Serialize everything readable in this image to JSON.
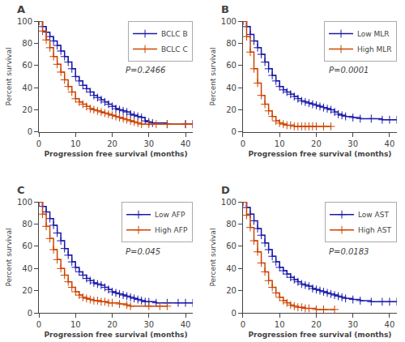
{
  "chart_data": [
    {
      "type": "step",
      "title": "A",
      "xlabel": "Progression free survival (months)",
      "ylabel": "Percent survival",
      "annotations": [
        "P=0.2466"
      ],
      "series": [
        {
          "name": "BCLC B",
          "color": "#1a1aaa",
          "marker": "+",
          "x": [
            0,
            1,
            2,
            3,
            4,
            5,
            6,
            7,
            8,
            9,
            10,
            11,
            12,
            13,
            14,
            15,
            16,
            17,
            18,
            19,
            20,
            21,
            22,
            23,
            24,
            25,
            26,
            27,
            28,
            29,
            30,
            31,
            35,
            40,
            42
          ],
          "values": [
            100,
            95,
            90,
            86,
            82,
            78,
            73,
            68,
            63,
            57,
            50,
            46,
            42,
            39,
            36,
            33,
            31,
            29,
            27,
            25,
            23,
            21,
            20,
            19,
            18,
            16,
            15,
            14,
            13,
            10,
            9,
            8,
            7,
            7,
            7
          ]
        },
        {
          "name": "BCLC C",
          "color": "#cc4400",
          "marker": "+",
          "x": [
            0,
            1,
            2,
            3,
            4,
            5,
            6,
            7,
            8,
            9,
            10,
            11,
            12,
            13,
            14,
            15,
            16,
            17,
            18,
            19,
            20,
            21,
            22,
            23,
            24,
            25,
            26,
            27,
            28,
            30,
            32,
            35,
            40,
            42
          ],
          "values": [
            100,
            91,
            83,
            76,
            68,
            61,
            54,
            47,
            41,
            36,
            30,
            27,
            25,
            23,
            21,
            20,
            19,
            18,
            17,
            16,
            15,
            14,
            13,
            12,
            11,
            10,
            9,
            8,
            7,
            7,
            7,
            7,
            7,
            7
          ]
        }
      ],
      "xlim": [
        0,
        42
      ],
      "ylim": [
        0,
        100
      ],
      "xticks": [
        0,
        10,
        20,
        30,
        40
      ],
      "yticks": [
        0,
        20,
        40,
        60,
        80,
        100
      ],
      "legend": "upper right",
      "grid": false
    },
    {
      "type": "step",
      "title": "B",
      "xlabel": "Progression free survival (months)",
      "ylabel": "Percent survival",
      "annotations": [
        "P=0.0001"
      ],
      "series": [
        {
          "name": "Low MLR",
          "color": "#1a1aaa",
          "marker": "+",
          "x": [
            0,
            1,
            2,
            3,
            4,
            5,
            6,
            7,
            8,
            9,
            10,
            11,
            12,
            13,
            14,
            15,
            16,
            17,
            18,
            19,
            20,
            21,
            22,
            23,
            24,
            25,
            26,
            27,
            28,
            30,
            32,
            35,
            38,
            40,
            42
          ],
          "values": [
            100,
            95,
            88,
            82,
            76,
            70,
            63,
            57,
            51,
            46,
            41,
            38,
            36,
            34,
            32,
            30,
            28,
            27,
            26,
            25,
            24,
            23,
            22,
            21,
            20,
            18,
            16,
            15,
            14,
            13,
            12,
            12,
            11,
            11,
            11
          ]
        },
        {
          "name": "High MLR",
          "color": "#cc4400",
          "marker": "+",
          "x": [
            0,
            1,
            2,
            3,
            4,
            5,
            6,
            7,
            8,
            9,
            10,
            11,
            12,
            13,
            14,
            15,
            16,
            17,
            18,
            19,
            20,
            22,
            24
          ],
          "values": [
            100,
            86,
            72,
            57,
            44,
            33,
            25,
            19,
            14,
            10,
            8,
            7,
            6,
            6,
            5,
            5,
            5,
            5,
            5,
            5,
            5,
            5,
            5
          ]
        }
      ],
      "xlim": [
        0,
        42
      ],
      "ylim": [
        0,
        100
      ],
      "xticks": [
        0,
        10,
        20,
        30,
        40
      ],
      "yticks": [
        0,
        20,
        40,
        60,
        80,
        100
      ],
      "legend": "upper right",
      "grid": false
    },
    {
      "type": "step",
      "title": "C",
      "xlabel": "Progression free survival (months)",
      "ylabel": "Percent survival",
      "annotations": [
        "P=0.045"
      ],
      "series": [
        {
          "name": "Low AFP",
          "color": "#1a1aaa",
          "marker": "+",
          "x": [
            0,
            1,
            2,
            3,
            4,
            5,
            6,
            7,
            8,
            9,
            10,
            11,
            12,
            13,
            14,
            15,
            16,
            17,
            18,
            19,
            20,
            21,
            22,
            23,
            24,
            25,
            26,
            27,
            28,
            29,
            30,
            32,
            35,
            38,
            40,
            42
          ],
          "values": [
            100,
            96,
            91,
            85,
            79,
            72,
            65,
            58,
            52,
            46,
            41,
            37,
            34,
            31,
            29,
            27,
            26,
            25,
            23,
            21,
            19,
            18,
            17,
            16,
            15,
            14,
            13,
            12,
            11,
            10,
            10,
            9,
            9,
            9,
            9,
            9
          ]
        },
        {
          "name": "High AFP",
          "color": "#cc4400",
          "marker": "+",
          "x": [
            0,
            1,
            2,
            3,
            4,
            5,
            6,
            7,
            8,
            9,
            10,
            11,
            12,
            13,
            14,
            15,
            16,
            17,
            18,
            19,
            20,
            22,
            24,
            25,
            30,
            33,
            35
          ],
          "values": [
            100,
            89,
            78,
            67,
            57,
            48,
            40,
            34,
            28,
            23,
            19,
            16,
            14,
            13,
            12,
            11,
            11,
            10,
            10,
            9,
            9,
            8,
            7,
            6,
            6,
            6,
            6
          ]
        }
      ],
      "xlim": [
        0,
        42
      ],
      "ylim": [
        0,
        100
      ],
      "xticks": [
        0,
        10,
        20,
        30,
        40
      ],
      "yticks": [
        0,
        20,
        40,
        60,
        80,
        100
      ],
      "legend": "upper right",
      "grid": false
    },
    {
      "type": "step",
      "title": "D",
      "xlabel": "Progression free survival (months)",
      "ylabel": "Percent survival",
      "annotations": [
        "P=0.0183"
      ],
      "series": [
        {
          "name": "Low AST",
          "color": "#1a1aaa",
          "marker": "+",
          "x": [
            0,
            1,
            2,
            3,
            4,
            5,
            6,
            7,
            8,
            9,
            10,
            11,
            12,
            13,
            14,
            15,
            16,
            17,
            18,
            19,
            20,
            21,
            22,
            23,
            24,
            25,
            26,
            27,
            28,
            30,
            32,
            35,
            38,
            40,
            42
          ],
          "values": [
            100,
            95,
            89,
            83,
            76,
            70,
            63,
            57,
            51,
            46,
            41,
            38,
            35,
            32,
            30,
            28,
            26,
            25,
            24,
            22,
            21,
            20,
            19,
            18,
            17,
            16,
            15,
            14,
            13,
            12,
            11,
            10,
            10,
            10,
            10
          ]
        },
        {
          "name": "High AST",
          "color": "#cc4400",
          "marker": "+",
          "x": [
            0,
            1,
            2,
            3,
            4,
            5,
            6,
            7,
            8,
            9,
            10,
            11,
            12,
            13,
            14,
            15,
            16,
            17,
            18,
            20,
            22,
            25
          ],
          "values": [
            100,
            88,
            77,
            65,
            55,
            45,
            37,
            29,
            23,
            18,
            14,
            11,
            9,
            7,
            6,
            5,
            5,
            4,
            4,
            3,
            3,
            3
          ]
        }
      ],
      "xlim": [
        0,
        42
      ],
      "ylim": [
        0,
        100
      ],
      "xticks": [
        0,
        10,
        20,
        30,
        40
      ],
      "yticks": [
        0,
        20,
        40,
        60,
        80,
        100
      ],
      "legend": "upper right",
      "grid": false
    }
  ]
}
